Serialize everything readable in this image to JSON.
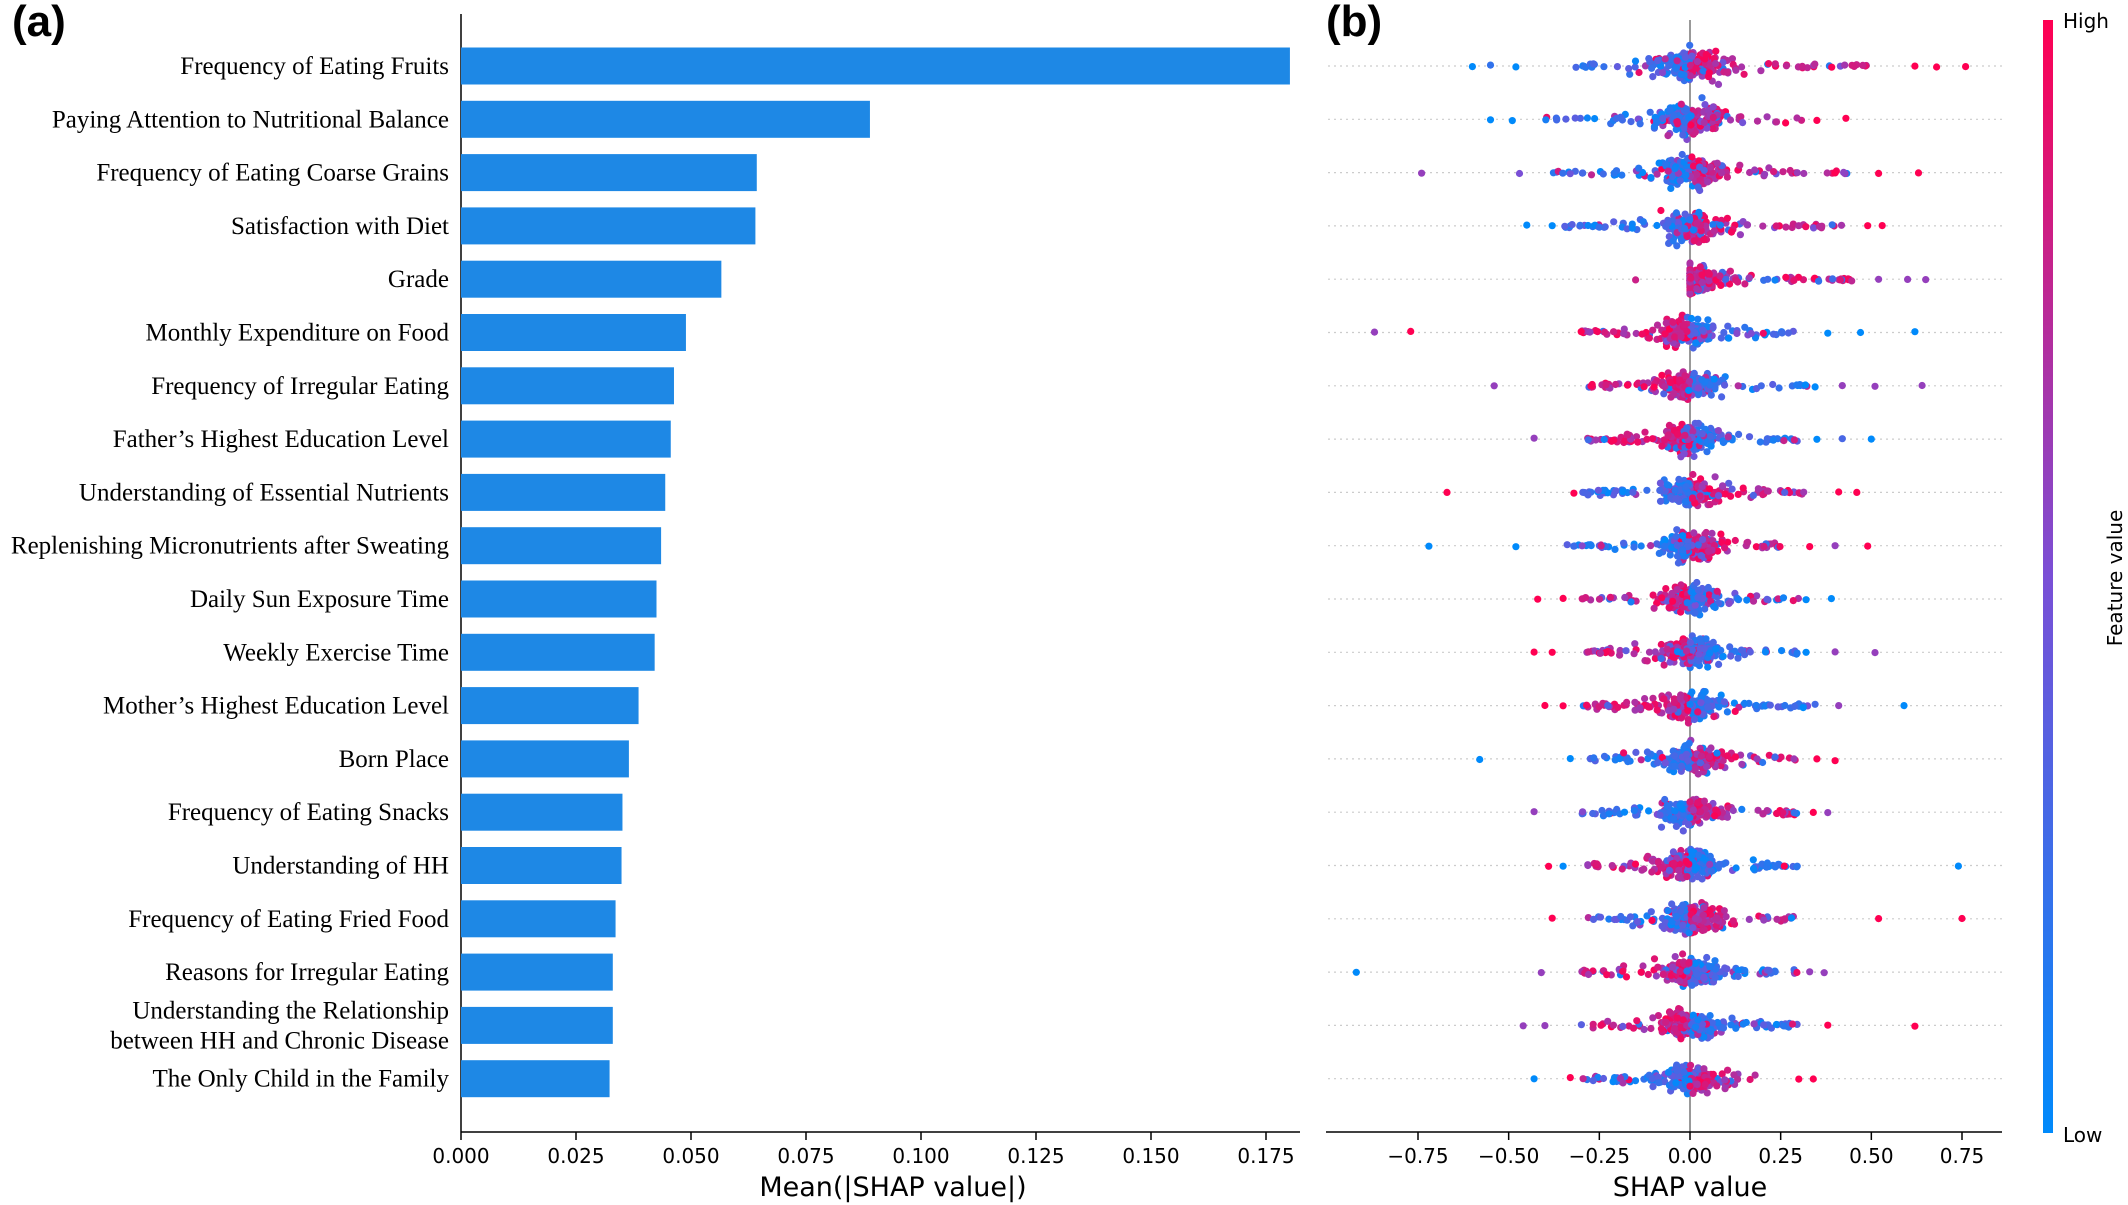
{
  "figure": {
    "panel_a_label": "(a)",
    "panel_b_label": "(b)"
  },
  "colors": {
    "bar": "#1e88e5",
    "low": "#008afb",
    "high": "#ff0052",
    "zero_line": "#999999",
    "guide": "#cccccc"
  },
  "chart_data": [
    {
      "type": "bar",
      "orientation": "horizontal",
      "panel": "(a)",
      "xlabel": "Mean(|SHAP value|)",
      "xlim": [
        0,
        0.18
      ],
      "xticks": [
        "0.000",
        "0.025",
        "0.050",
        "0.075",
        "0.100",
        "0.125",
        "0.150",
        "0.175"
      ],
      "xtick_values": [
        0,
        0.025,
        0.05,
        0.075,
        0.1,
        0.125,
        0.15,
        0.175
      ],
      "categories": [
        "Frequency of Eating Fruits",
        "Paying Attention to Nutritional Balance",
        "Frequency of Eating Coarse Grains",
        "Satisfaction with Diet",
        "Grade",
        "Monthly Expenditure on Food",
        "Frequency of Irregular Eating",
        "Father’s Highest Education Level",
        "Understanding of Essential Nutrients",
        "Replenishing Micronutrients after Sweating",
        "Daily Sun Exposure Time",
        "Weekly Exercise Time",
        "Mother’s Highest Education Level",
        "Born Place",
        "Frequency of Eating Snacks",
        "Understanding of HH",
        "Frequency of Eating Fried Food",
        "Reasons for Irregular Eating",
        "Understanding the Relationship between HH and Chronic Disease",
        "The Only Child in the Family"
      ],
      "category_lines": [
        [
          "Frequency of Eating Fruits"
        ],
        [
          "Paying Attention to Nutritional Balance"
        ],
        [
          "Frequency of Eating Coarse Grains"
        ],
        [
          "Satisfaction with Diet"
        ],
        [
          "Grade"
        ],
        [
          "Monthly Expenditure on Food"
        ],
        [
          "Frequency of Irregular Eating"
        ],
        [
          "Father’s Highest Education Level"
        ],
        [
          "Understanding of Essential Nutrients"
        ],
        [
          "Replenishing Micronutrients after Sweating"
        ],
        [
          "Daily Sun Exposure Time"
        ],
        [
          "Weekly Exercise Time"
        ],
        [
          "Mother’s Highest Education Level"
        ],
        [
          "Born Place"
        ],
        [
          "Frequency of Eating Snacks"
        ],
        [
          "Understanding of HH"
        ],
        [
          "Frequency of Eating Fried Food"
        ],
        [
          "Reasons for Irregular Eating"
        ],
        [
          "Understanding the Relationship",
          "between HH and Chronic Disease"
        ],
        [
          "The Only Child in the Family"
        ]
      ],
      "values": [
        0.1802,
        0.0889,
        0.0643,
        0.064,
        0.0566,
        0.0489,
        0.0463,
        0.0456,
        0.0444,
        0.0435,
        0.0425,
        0.0421,
        0.0386,
        0.0365,
        0.0351,
        0.0349,
        0.0336,
        0.033,
        0.033,
        0.0323
      ]
    },
    {
      "type": "scatter",
      "subtype": "shap-beeswarm",
      "panel": "(b)",
      "xlabel": "SHAP value",
      "xlim": [
        -1.0,
        0.85
      ],
      "xticks": [
        "−0.75",
        "−0.50",
        "−0.25",
        "0.00",
        "0.25",
        "0.50",
        "0.75"
      ],
      "xtick_values": [
        -0.75,
        -0.5,
        -0.25,
        0,
        0.25,
        0.5,
        0.75
      ],
      "features_same_order_as_panel_a": true,
      "rows": [
        {
          "min": -0.6,
          "max": 0.76,
          "core_l": -0.35,
          "core_r": 0.5,
          "spread": 1.0,
          "low_side": "left",
          "outliers": [
            [
              -0.6,
              0.0
            ],
            [
              -0.55,
              0.2
            ],
            [
              -0.48,
              0.0
            ],
            [
              0.62,
              1.0
            ],
            [
              0.68,
              1.0
            ],
            [
              0.76,
              1.0
            ]
          ]
        },
        {
          "min": -0.55,
          "max": 0.45,
          "core_l": -0.4,
          "core_r": 0.32,
          "spread": 0.8,
          "low_side": "left",
          "outliers": [
            [
              -0.55,
              0.0
            ],
            [
              -0.49,
              0.0
            ],
            [
              0.35,
              1.0
            ],
            [
              0.43,
              1.0
            ]
          ]
        },
        {
          "min": -0.74,
          "max": 0.65,
          "core_l": -0.38,
          "core_r": 0.45,
          "spread": 0.7,
          "low_side": "left",
          "outliers": [
            [
              -0.74,
              0.6
            ],
            [
              -0.47,
              0.5
            ],
            [
              0.4,
              1.0
            ],
            [
              0.52,
              1.0
            ],
            [
              0.63,
              1.0
            ]
          ]
        },
        {
          "min": -0.45,
          "max": 0.53,
          "core_l": -0.35,
          "core_r": 0.45,
          "spread": 0.6,
          "low_side": "left",
          "outliers": [
            [
              -0.45,
              0.0
            ],
            [
              -0.38,
              0.0
            ],
            [
              0.49,
              1.0
            ],
            [
              0.53,
              1.0
            ]
          ]
        },
        {
          "min": -0.15,
          "max": 0.65,
          "core_l": 0.0,
          "core_r": 0.45,
          "spread": 0.3,
          "low_side": "left",
          "outliers": [
            [
              -0.15,
              0.8
            ],
            [
              0.52,
              0.6
            ],
            [
              0.6,
              0.6
            ],
            [
              0.65,
              0.6
            ]
          ]
        },
        {
          "min": -0.87,
          "max": 0.62,
          "core_l": -0.3,
          "core_r": 0.3,
          "spread": 0.5,
          "low_side": "right",
          "outliers": [
            [
              -0.87,
              0.6
            ],
            [
              -0.77,
              1.0
            ],
            [
              -0.3,
              1.0
            ],
            [
              0.38,
              0.0
            ],
            [
              0.47,
              0.0
            ],
            [
              0.62,
              0.0
            ]
          ]
        },
        {
          "min": -0.54,
          "max": 0.64,
          "core_l": -0.28,
          "core_r": 0.35,
          "spread": 0.5,
          "low_side": "right",
          "outliers": [
            [
              -0.54,
              0.6
            ],
            [
              0.42,
              0.6
            ],
            [
              0.51,
              0.6
            ],
            [
              0.64,
              0.6
            ]
          ]
        },
        {
          "min": -0.43,
          "max": 0.5,
          "core_l": -0.3,
          "core_r": 0.3,
          "spread": 0.5,
          "low_side": "right",
          "outliers": [
            [
              -0.43,
              0.6
            ],
            [
              0.35,
              0.0
            ],
            [
              0.42,
              0.3
            ],
            [
              0.5,
              0.0
            ]
          ]
        },
        {
          "min": -0.67,
          "max": 0.46,
          "core_l": -0.3,
          "core_r": 0.35,
          "spread": 0.5,
          "low_side": "left",
          "outliers": [
            [
              -0.67,
              1.0
            ],
            [
              -0.32,
              1.0
            ],
            [
              0.41,
              1.0
            ],
            [
              0.46,
              1.0
            ]
          ]
        },
        {
          "min": -0.72,
          "max": 0.49,
          "core_l": -0.35,
          "core_r": 0.25,
          "spread": 0.5,
          "low_side": "left",
          "outliers": [
            [
              -0.72,
              0.0
            ],
            [
              -0.48,
              0.0
            ],
            [
              0.33,
              1.0
            ],
            [
              0.4,
              0.6
            ],
            [
              0.49,
              1.0
            ]
          ]
        },
        {
          "min": -0.42,
          "max": 0.39,
          "core_l": -0.3,
          "core_r": 0.3,
          "spread": 0.5,
          "low_side": "right",
          "outliers": [
            [
              -0.42,
              1.0
            ],
            [
              -0.35,
              1.0
            ],
            [
              0.32,
              0.0
            ],
            [
              0.39,
              0.0
            ]
          ]
        },
        {
          "min": -0.43,
          "max": 0.51,
          "core_l": -0.3,
          "core_r": 0.3,
          "spread": 0.5,
          "low_side": "right",
          "outliers": [
            [
              -0.43,
              1.0
            ],
            [
              -0.38,
              1.0
            ],
            [
              0.32,
              0.0
            ],
            [
              0.4,
              0.6
            ],
            [
              0.51,
              0.6
            ]
          ]
        },
        {
          "min": -0.4,
          "max": 0.59,
          "core_l": -0.3,
          "core_r": 0.35,
          "spread": 0.5,
          "low_side": "right",
          "outliers": [
            [
              -0.4,
              1.0
            ],
            [
              -0.35,
              1.0
            ],
            [
              0.41,
              0.6
            ],
            [
              0.59,
              0.0
            ]
          ]
        },
        {
          "min": -0.58,
          "max": 0.4,
          "core_l": -0.28,
          "core_r": 0.3,
          "spread": 0.5,
          "low_side": "left",
          "outliers": [
            [
              -0.58,
              0.0
            ],
            [
              -0.33,
              0.0
            ],
            [
              0.35,
              1.0
            ],
            [
              0.4,
              1.0
            ]
          ]
        },
        {
          "min": -0.43,
          "max": 0.38,
          "core_l": -0.3,
          "core_r": 0.3,
          "spread": 0.5,
          "low_side": "left",
          "outliers": [
            [
              -0.43,
              0.6
            ],
            [
              0.34,
              1.0
            ],
            [
              0.38,
              0.6
            ]
          ]
        },
        {
          "min": -0.39,
          "max": 0.74,
          "core_l": -0.3,
          "core_r": 0.3,
          "spread": 0.5,
          "low_side": "right",
          "outliers": [
            [
              -0.39,
              1.0
            ],
            [
              -0.35,
              0.0
            ],
            [
              0.26,
              1.0
            ],
            [
              0.74,
              0.0
            ]
          ]
        },
        {
          "min": -0.38,
          "max": 0.75,
          "core_l": -0.3,
          "core_r": 0.3,
          "spread": 0.5,
          "low_side": "left",
          "outliers": [
            [
              -0.38,
              1.0
            ],
            [
              0.28,
              0.0
            ],
            [
              0.52,
              1.0
            ],
            [
              0.75,
              1.0
            ]
          ]
        },
        {
          "min": -0.92,
          "max": 0.37,
          "core_l": -0.3,
          "core_r": 0.3,
          "spread": 0.5,
          "low_side": "right",
          "outliers": [
            [
              -0.92,
              0.0
            ],
            [
              -0.41,
              0.6
            ],
            [
              0.33,
              0.6
            ],
            [
              0.37,
              0.6
            ]
          ]
        },
        {
          "min": -0.46,
          "max": 0.62,
          "core_l": -0.3,
          "core_r": 0.3,
          "spread": 0.5,
          "low_side": "right",
          "outliers": [
            [
              -0.46,
              0.6
            ],
            [
              -0.4,
              0.6
            ],
            [
              0.38,
              1.0
            ],
            [
              0.62,
              1.0
            ]
          ]
        },
        {
          "min": -0.43,
          "max": 0.34,
          "core_l": -0.3,
          "core_r": 0.2,
          "spread": 0.5,
          "low_side": "left",
          "outliers": [
            [
              -0.43,
              0.0
            ],
            [
              -0.33,
              1.0
            ],
            [
              0.3,
              1.0
            ],
            [
              0.34,
              1.0
            ]
          ]
        }
      ],
      "colorbar": {
        "title": "Feature value",
        "high_label": "High",
        "low_label": "Low"
      }
    }
  ]
}
